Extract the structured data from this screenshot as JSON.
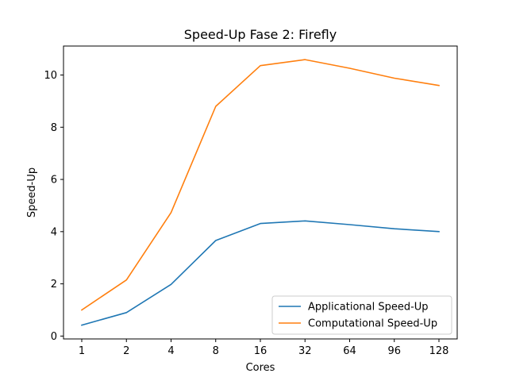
{
  "chart_data": {
    "type": "line",
    "title": "Speed-Up Fase 2: Firefly",
    "xlabel": "Cores",
    "ylabel": "Speed-Up",
    "categories": [
      "1",
      "2",
      "4",
      "8",
      "16",
      "32",
      "64",
      "96",
      "128"
    ],
    "ylim": [
      -0.11,
      11.11
    ],
    "yticks": [
      0,
      2,
      4,
      6,
      8,
      10
    ],
    "grid": false,
    "legend_position": "lower right",
    "series": [
      {
        "name": "Applicational Speed-Up",
        "color": "#1f77b4",
        "values": [
          0.42,
          0.9,
          1.98,
          3.66,
          4.31,
          4.41,
          4.27,
          4.11,
          4.0
        ]
      },
      {
        "name": "Computational Speed-Up",
        "color": "#ff7f0e",
        "values": [
          1.0,
          2.15,
          4.73,
          8.8,
          10.36,
          10.59,
          10.26,
          9.88,
          9.6
        ]
      }
    ]
  }
}
